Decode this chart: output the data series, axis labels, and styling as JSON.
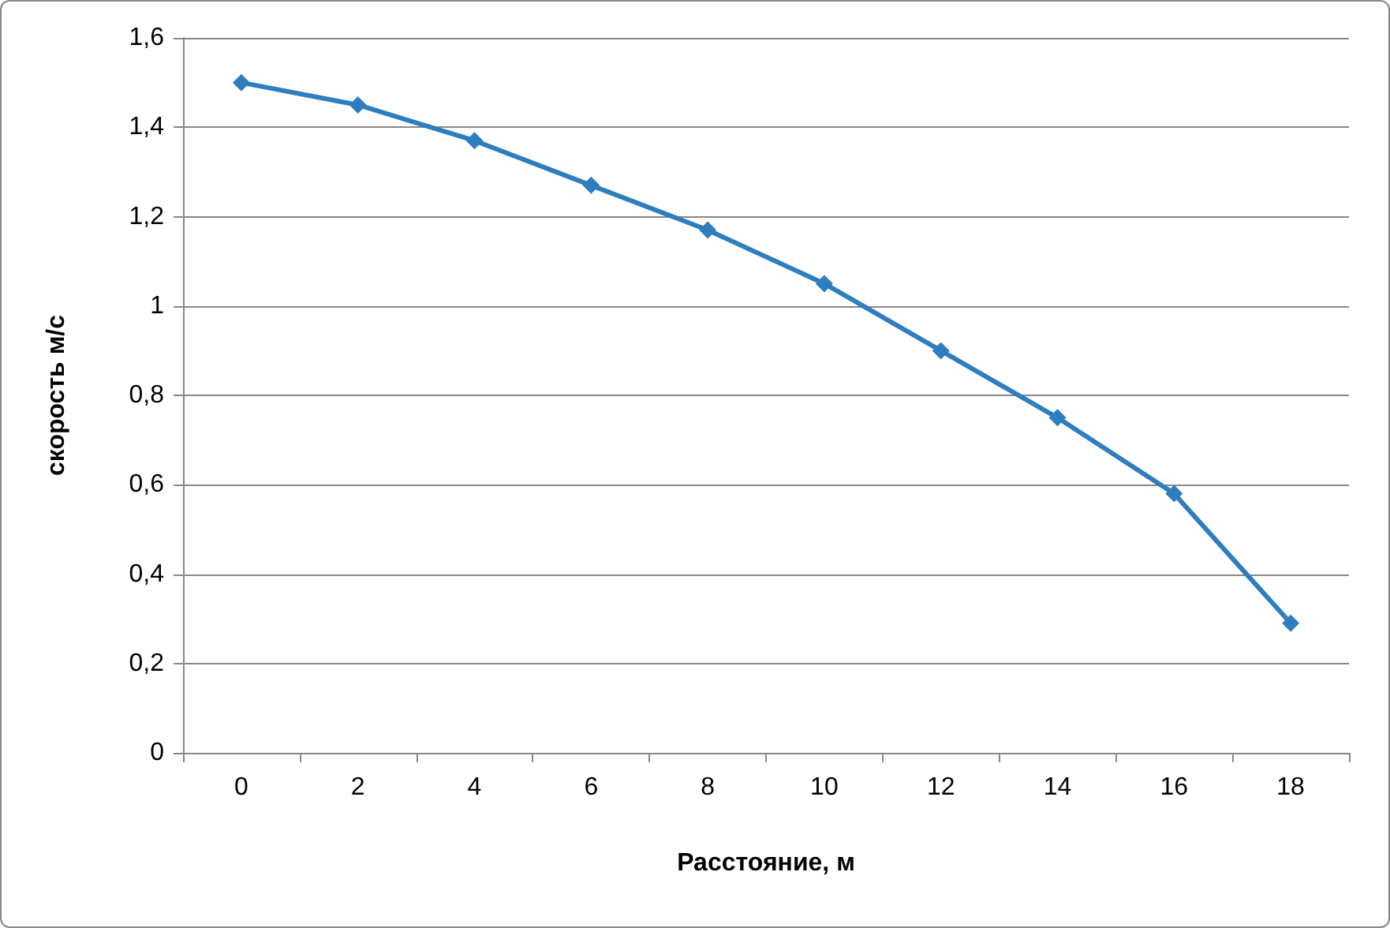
{
  "chart_data": {
    "type": "line",
    "xlabel": "Расстояние, м",
    "ylabel": "скорость м/с",
    "categories": [
      "0",
      "2",
      "4",
      "6",
      "8",
      "10",
      "12",
      "14",
      "16",
      "18"
    ],
    "series": [
      {
        "color": "#2e7dbf",
        "values": [
          1.5,
          1.45,
          1.37,
          1.27,
          1.17,
          1.05,
          0.9,
          0.75,
          0.58,
          0.29
        ]
      }
    ],
    "ylim": [
      0,
      1.6
    ],
    "yticks": [
      0,
      {
        "value": 0.2,
        "label": "0,2"
      },
      {
        "value": 0.4,
        "label": "0,4"
      },
      {
        "value": 0.6,
        "label": "0,6"
      },
      {
        "value": 0.8,
        "label": "0,8"
      },
      1,
      {
        "value": 1.2,
        "label": "1,2"
      },
      {
        "value": 1.4,
        "label": "1,4"
      },
      {
        "value": 1.6,
        "label": "1,6"
      }
    ],
    "grid": "y",
    "marker": "diamond"
  }
}
